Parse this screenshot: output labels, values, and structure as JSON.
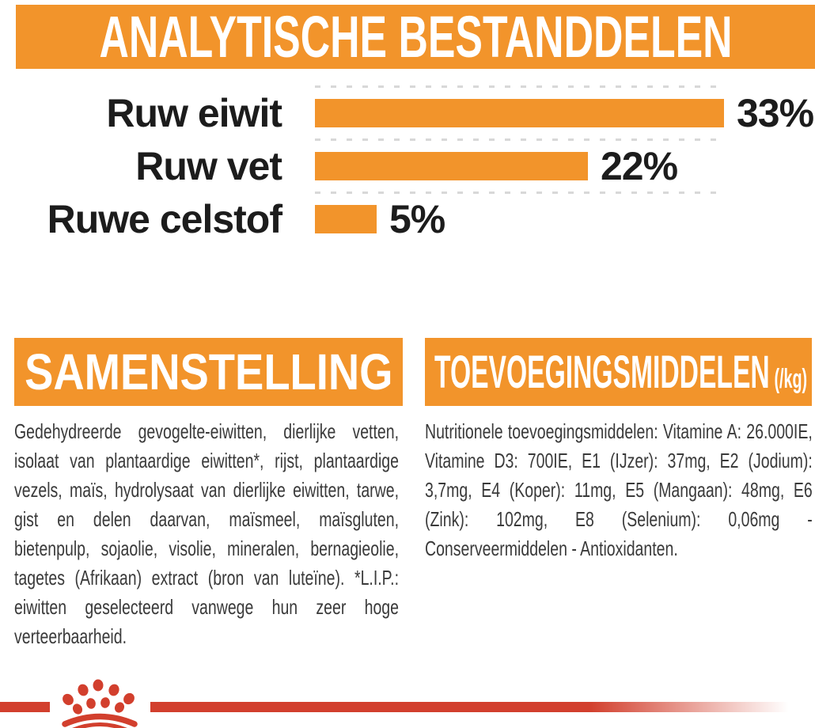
{
  "theme": {
    "orange": "#F2942B",
    "red": "#D23F2D",
    "heading_text": "#FFFFFF",
    "chart_text": "#1C1C1C",
    "body_text": "#3A3A3A"
  },
  "header": {
    "title": "ANALYTISCHE BESTANDDELEN"
  },
  "chart_data": {
    "type": "bar",
    "orientation": "horizontal",
    "title": "ANALYTISCHE BESTANDDELEN",
    "categories": [
      "Ruw eiwit",
      "Ruw vet",
      "Ruwe celstof"
    ],
    "values": [
      33,
      22,
      5
    ],
    "value_labels": [
      "33%",
      "22%",
      "5%"
    ],
    "unit": "%",
    "max_value": 33,
    "bar_color": "#F2942B",
    "grid": "faint dotted separator above each bar",
    "legend": "none"
  },
  "sections": {
    "samenstelling": {
      "heading": "SAMENSTELLING",
      "body": "Gedehydreerde gevogelte-eiwitten, dierlijke vetten, isolaat van plantaardige eiwitten*, rijst, plantaardige vezels, maïs, hydrolysaat van dierlijke eiwitten, tarwe, gist en delen daarvan, maïsmeel, maïsgluten, bietenpulp, sojaolie, visolie, mineralen, bernagieolie, tagetes (Afrikaan) extract (bron van luteïne). *L.I.P.: eiwitten geselecteerd vanwege hun zeer hoge verteerbaarheid."
    },
    "toevoegingsmiddelen": {
      "heading": "TOEVOEGINGSMIDDELEN",
      "heading_suffix": "(/kg)",
      "body": "Nutritionele toevoegingsmiddelen: Vitamine A: 26.000IE, Vitamine D3: 700IE, E1 (IJzer): 37mg, E2 (Jodium): 3,7mg, E4 (Koper): 11mg, E5 (Mangaan): 48mg, E6 (Zink): 102mg, E8 (Selenium): 0,06mg - Conserveermiddelen - Antioxidanten."
    }
  },
  "footer": {
    "logo": "royal-canin-crown"
  }
}
